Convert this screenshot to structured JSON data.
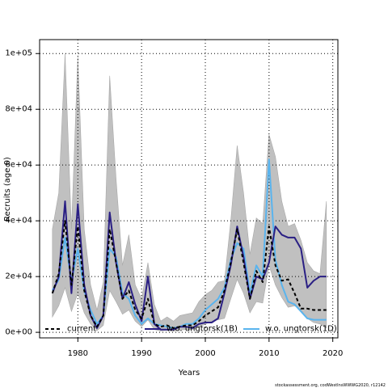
{
  "chart_data": {
    "type": "line",
    "xlabel": "Years",
    "ylabel": "Recruits (age 0)",
    "xlim": [
      1974,
      2020.8
    ],
    "ylim": [
      -2000,
      105000
    ],
    "x_ticks": [
      1980,
      1990,
      2000,
      2010,
      2020
    ],
    "x_tick_labels": [
      "1980",
      "1990",
      "2000",
      "2010",
      "2020"
    ],
    "y_ticks": [
      0,
      20000,
      40000,
      60000,
      80000,
      100000
    ],
    "y_tick_labels": [
      "0e+00",
      "2e+04",
      "4e+04",
      "6e+04",
      "8e+04",
      "1e+05"
    ],
    "grid": true,
    "legend_position": "bottom",
    "footnote": "stockassessment.org, codWestInsWWWG2020, r12142",
    "series": [
      {
        "name": "current",
        "color": "#000000",
        "style": "dashed",
        "x": [
          1976,
          1977,
          1978,
          1979,
          1980,
          1981,
          1982,
          1983,
          1984,
          1985,
          1986,
          1987,
          1988,
          1989,
          1990,
          1991,
          1992,
          1993,
          1994,
          1995,
          1996,
          1997,
          1998,
          1999,
          2000,
          2001,
          2002,
          2003,
          2004,
          2005,
          2006,
          2007,
          2008,
          2009,
          2010,
          2011,
          2012,
          2013,
          2014,
          2015,
          2016,
          2017,
          2018,
          2019
        ],
        "values": [
          14000,
          21000,
          40000,
          17000,
          38000,
          15000,
          6000,
          2000,
          6000,
          37000,
          25000,
          12000,
          15000,
          8000,
          5000,
          12000,
          3000,
          2000,
          2500,
          1500,
          2000,
          2500,
          2500,
          4000,
          6000,
          7500,
          9000,
          15000,
          25000,
          37000,
          25000,
          12000,
          22000,
          18000,
          38000,
          24000,
          18500,
          19000,
          14000,
          8500,
          8500,
          8000,
          8000,
          8000
        ]
      },
      {
        "name": "w.o. ungtorsk(1B)",
        "color": "#2a1f84",
        "style": "solid",
        "x": [
          1976,
          1977,
          1978,
          1979,
          1980,
          1981,
          1982,
          1983,
          1984,
          1985,
          1986,
          1987,
          1988,
          1989,
          1990,
          1991,
          1992,
          1993,
          1994,
          1995,
          1996,
          1997,
          1998,
          1999,
          2000,
          2001,
          2002,
          2003,
          2004,
          2005,
          2006,
          2007,
          2008,
          2009,
          2010,
          2011,
          2012,
          2013,
          2014,
          2015,
          2016,
          2017,
          2018,
          2019
        ],
        "values": [
          14000,
          20000,
          47000,
          14000,
          46000,
          17000,
          6000,
          1500,
          6000,
          43000,
          25000,
          12000,
          18000,
          10000,
          4000,
          20000,
          3000,
          1000,
          1000,
          1000,
          2000,
          2000,
          1500,
          3000,
          3500,
          3500,
          5000,
          14000,
          24000,
          38000,
          27000,
          12000,
          20000,
          19000,
          25000,
          38000,
          35000,
          34000,
          34000,
          30000,
          16000,
          18500,
          20000,
          20000
        ]
      },
      {
        "name": "w.o. ungtorsk(1D)",
        "color": "#5ab4ee",
        "style": "solid",
        "x": [
          1976,
          1977,
          1978,
          1979,
          1980,
          1981,
          1982,
          1983,
          1984,
          1985,
          1986,
          1987,
          1988,
          1989,
          1990,
          1991,
          1992,
          1993,
          1994,
          1995,
          1996,
          1997,
          1998,
          1999,
          2000,
          2001,
          2002,
          2003,
          2004,
          2005,
          2006,
          2007,
          2008,
          2009,
          2010,
          2011,
          2012,
          2013,
          2014,
          2015,
          2016,
          2017,
          2018,
          2019
        ],
        "values": [
          15000,
          19000,
          34000,
          18000,
          30000,
          15000,
          8000,
          3000,
          6000,
          30000,
          27000,
          14000,
          12000,
          6000,
          3000,
          5000,
          3000,
          2500,
          2000,
          1500,
          2000,
          3000,
          3000,
          5000,
          8000,
          10000,
          12000,
          16000,
          26000,
          32000,
          30000,
          14000,
          24000,
          20000,
          62000,
          26000,
          17000,
          11000,
          10000,
          7500,
          5000,
          4500,
          4500,
          4500
        ]
      },
      {
        "name": "confidence band (current)",
        "color": "#c0c0c0",
        "style": "band",
        "x": [
          1976,
          1977,
          1978,
          1979,
          1980,
          1981,
          1982,
          1983,
          1984,
          1985,
          1986,
          1987,
          1988,
          1989,
          1990,
          1991,
          1992,
          1993,
          1994,
          1995,
          1996,
          1997,
          1998,
          1999,
          2000,
          2001,
          2002,
          2003,
          2004,
          2005,
          2006,
          2007,
          2008,
          2009,
          2010,
          2011,
          2012,
          2013,
          2014,
          2015,
          2016,
          2017,
          2018,
          2019
        ],
        "upper": [
          37000,
          50000,
          100000,
          37000,
          99000,
          37000,
          17000,
          8000,
          18000,
          92000,
          55000,
          24000,
          35000,
          17000,
          12000,
          25000,
          10000,
          4000,
          5500,
          4000,
          6000,
          6500,
          7000,
          11000,
          13500,
          15000,
          18000,
          18500,
          40000,
          67000,
          50000,
          28000,
          41000,
          39000,
          71000,
          63000,
          47000,
          38000,
          39000,
          33000,
          25000,
          22000,
          21000,
          47000
        ],
        "lower": [
          5500,
          9500,
          16000,
          7500,
          14000,
          7000,
          3000,
          600,
          2500,
          15000,
          11000,
          6500,
          8000,
          4000,
          2000,
          4500,
          1000,
          500,
          700,
          500,
          800,
          1000,
          1000,
          1800,
          3000,
          4000,
          4500,
          5000,
          12000,
          19000,
          14000,
          7000,
          11000,
          10500,
          24000,
          17000,
          12500,
          9000,
          9500,
          8000,
          5000,
          3500,
          3000,
          1500
        ]
      }
    ]
  }
}
